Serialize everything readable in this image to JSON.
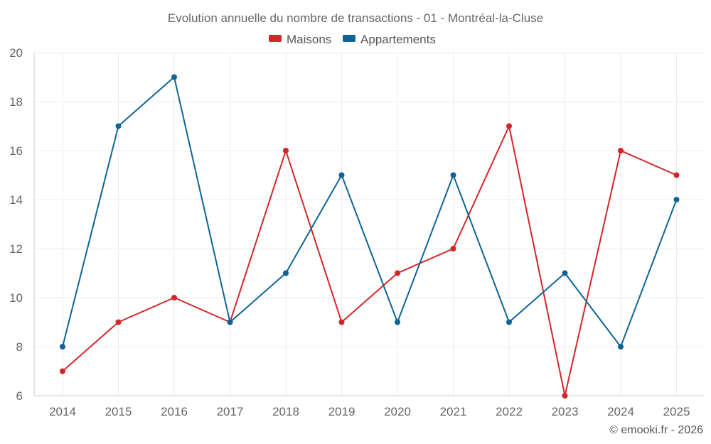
{
  "chart_data": {
    "type": "line",
    "title": "Evolution annuelle du nombre de transactions - 01 - Montréal-la-Cluse",
    "categories": [
      "2014",
      "2015",
      "2016",
      "2017",
      "2018",
      "2019",
      "2020",
      "2021",
      "2022",
      "2023",
      "2024",
      "2025"
    ],
    "ylim": [
      6,
      20
    ],
    "yticks": [
      6,
      8,
      10,
      12,
      14,
      16,
      18,
      20
    ],
    "grid": true,
    "legend_position": "top-center",
    "series": [
      {
        "name": "Maisons",
        "color": "#d3262a",
        "values": [
          7,
          9,
          10,
          9,
          16,
          9,
          11,
          12,
          17,
          6,
          16,
          15
        ]
      },
      {
        "name": "Appartements",
        "color": "#0f6496",
        "values": [
          8,
          17,
          19,
          9,
          11,
          15,
          9,
          15,
          9,
          11,
          8,
          14
        ]
      }
    ],
    "credit": "© emooki.fr - 2026"
  }
}
